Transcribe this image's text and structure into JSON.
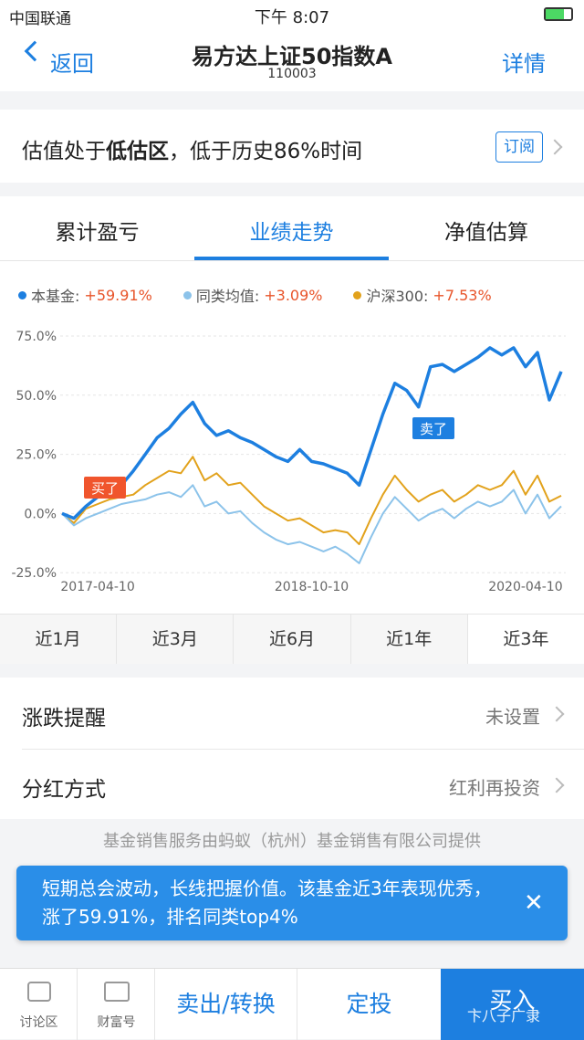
{
  "status_bar": {
    "carrier": "中国联通",
    "time": "下午 8:07"
  },
  "nav": {
    "back": "返回",
    "title": "易方达上证50指数A",
    "code": "110003",
    "detail": "详情"
  },
  "valuation": {
    "prefix": "估值处于",
    "highlight": "低估区",
    "suffix": "，低于历史86%时间",
    "button": "订阅"
  },
  "tabs": [
    "累计盈亏",
    "业绩走势",
    "净值估算"
  ],
  "chart_data": {
    "type": "line",
    "categories": [
      null,
      null,
      null,
      "2017-04-10",
      null,
      null,
      null,
      null,
      null,
      null,
      null,
      null,
      null,
      null,
      null,
      null,
      null,
      null,
      null,
      null,
      null,
      "2018-10-10",
      null,
      null,
      null,
      null,
      null,
      null,
      null,
      null,
      null,
      null,
      null,
      null,
      null,
      null,
      null,
      null,
      null,
      "2020-04-10",
      null,
      null,
      null
    ],
    "series": [
      {
        "name": "本基金:",
        "change": "+59.91%",
        "color": "#1d7fe0",
        "values": [
          0,
          -2,
          3,
          7,
          10,
          12,
          18,
          25,
          32,
          36,
          42,
          47,
          38,
          33,
          35,
          32,
          30,
          27,
          24,
          22,
          27,
          22,
          21,
          19,
          17,
          12,
          27,
          42,
          55,
          52,
          45,
          62,
          63,
          60,
          63,
          66,
          70,
          67,
          70,
          62,
          68,
          48,
          60
        ]
      },
      {
        "name": "同类均值:",
        "change": "+3.09%",
        "color": "#8cc3ea",
        "values": [
          0,
          -5,
          -2,
          0,
          2,
          4,
          5,
          6,
          8,
          9,
          7,
          12,
          3,
          5,
          0,
          1,
          -4,
          -8,
          -11,
          -13,
          -12,
          -14,
          -16,
          -14,
          -17,
          -21,
          -10,
          0,
          7,
          2,
          -3,
          0,
          2,
          -2,
          2,
          5,
          3,
          5,
          10,
          0,
          8,
          -2,
          3.09
        ]
      },
      {
        "name": "沪深300:",
        "change": "+7.53%",
        "color": "#e2a21c",
        "values": [
          0,
          -4,
          2,
          4,
          6,
          7,
          8,
          12,
          15,
          18,
          17,
          24,
          14,
          17,
          12,
          13,
          8,
          3,
          0,
          -3,
          -2,
          -5,
          -8,
          -7,
          -8,
          -13,
          -2,
          8,
          16,
          10,
          5,
          8,
          10,
          5,
          8,
          12,
          10,
          12,
          18,
          8,
          16,
          5,
          7.53
        ]
      }
    ],
    "ylim": [
      -28,
      80
    ],
    "yticks": [
      {
        "value": 75,
        "label": "75.0%"
      },
      {
        "value": 50,
        "label": "50.0%"
      },
      {
        "value": 25,
        "label": "25.0%"
      },
      {
        "value": 0,
        "label": "0.0%"
      },
      {
        "value": -25,
        "label": "-25.0%"
      }
    ],
    "grid": true,
    "annotations": [
      {
        "text": "买了",
        "color": "#f0552d"
      },
      {
        "text": "卖了",
        "color": "#1d7fe0"
      }
    ]
  },
  "periods": [
    "近1月",
    "近3月",
    "近6月",
    "近1年",
    "近3年"
  ],
  "settings": [
    {
      "label": "涨跌提醒",
      "value": "未设置"
    },
    {
      "label": "分红方式",
      "value": "红利再投资"
    }
  ],
  "provider": "基金销售服务由蚂蚁（杭州）基金销售有限公司提供",
  "toast": "短期总会波动，长线把握价值。该基金近3年表现优秀，涨了59.91%，排名同类top4%",
  "bottom": {
    "discuss": "讨论区",
    "wealth": "财富号",
    "sell": "卖出/转换",
    "auto": "定投",
    "buy": "买入"
  },
  "watermark": "卞八子广隶"
}
